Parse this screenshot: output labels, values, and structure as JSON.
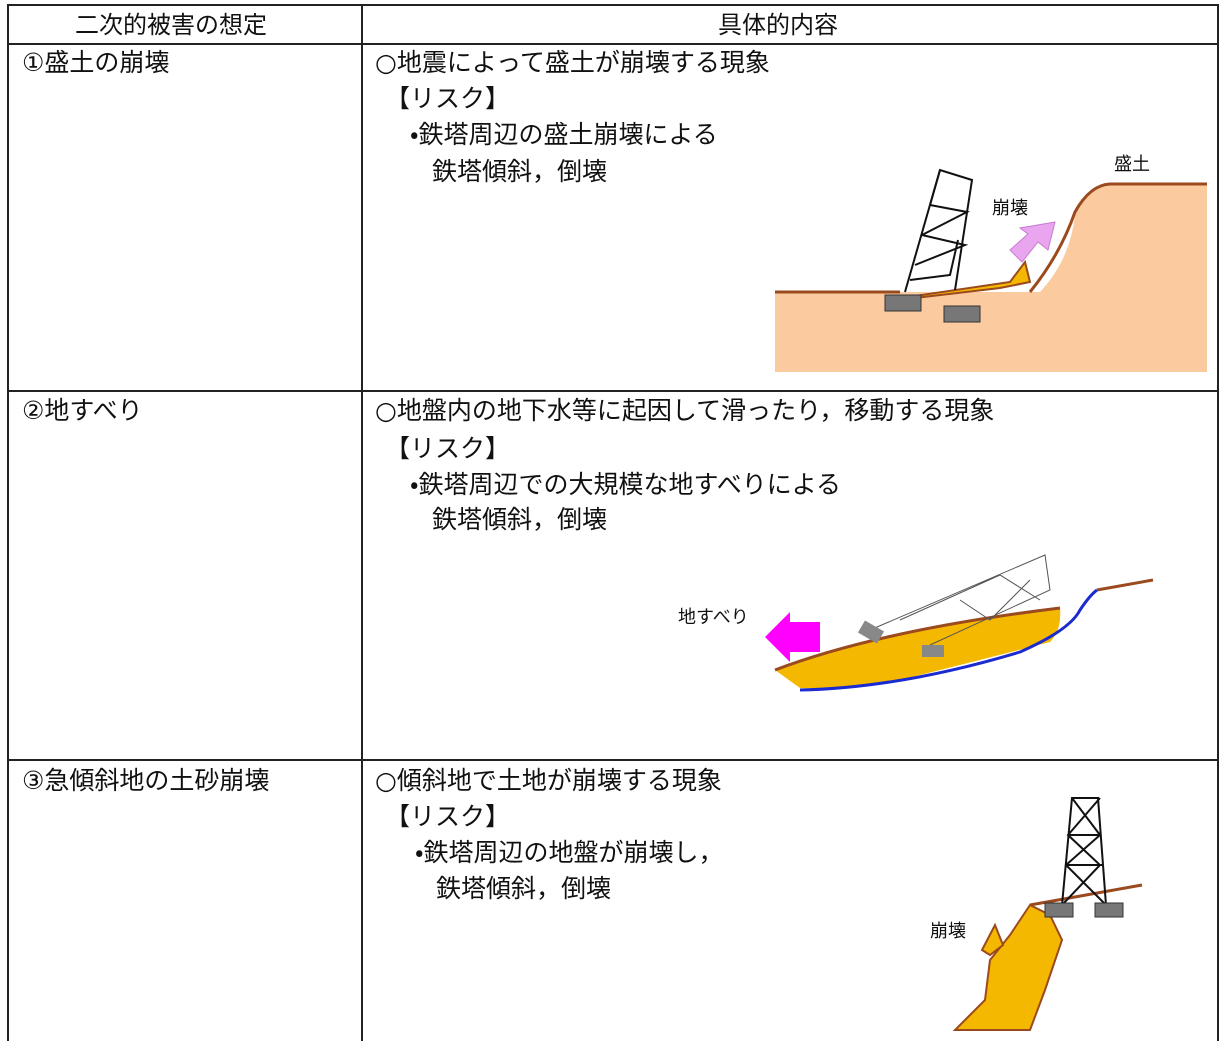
{
  "table": {
    "header": [
      "二次的被害の想定",
      "具体的内容"
    ],
    "rows": [
      {
        "hazard": "①盛土の崩壊",
        "phenomenon": "○地震によって盛土が崩壊する現象",
        "risk_heading": "【リスク】",
        "risk": [
          "・鉄塔周辺の盛土崩壊による",
          "鉄塔傾斜，倒壊"
        ],
        "figure_labels": [
          "盛土",
          "崩壊"
        ]
      },
      {
        "hazard": "②地すべり",
        "phenomenon": "○地盤内の地下水等に起因して滑ったり，移動する現象",
        "risk_heading": "【リスク】",
        "risk": [
          "・鉄塔周辺での大規模な地すべりによる",
          "鉄塔傾斜，倒壊"
        ],
        "figure_labels": [
          "地すべり"
        ]
      },
      {
        "hazard": "③急傾斜地の土砂崩壊",
        "phenomenon": "○傾斜地で土地が崩壊する現象",
        "risk_heading": "【リスク】",
        "risk": [
          "・鉄塔周辺の地盤が崩壊し，",
          "鉄塔傾斜，倒壊"
        ],
        "figure_labels": [
          "崩壊"
        ]
      }
    ]
  }
}
